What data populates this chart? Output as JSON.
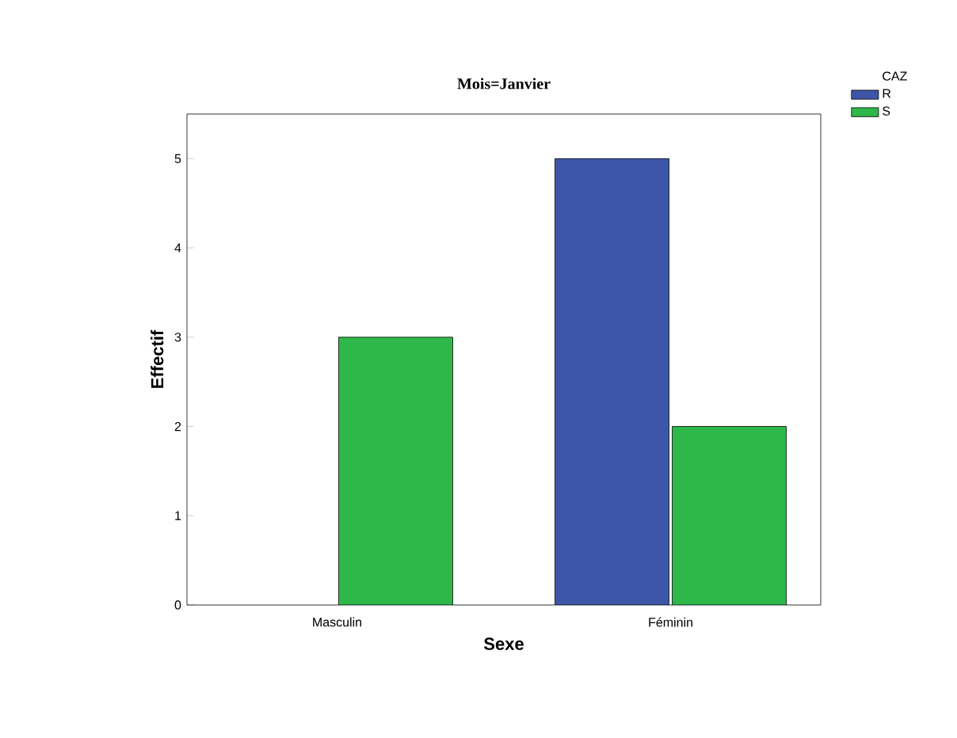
{
  "chart_data": {
    "type": "bar",
    "title": "Mois=Janvier",
    "xlabel": "Sexe",
    "ylabel": "Effectif",
    "legend_title": "CAZ",
    "categories": [
      "Masculin",
      "Féminin"
    ],
    "series": [
      {
        "name": "R",
        "color": "#3e56a8",
        "values": [
          null,
          5
        ]
      },
      {
        "name": "S",
        "color": "#2eb84a",
        "values": [
          3,
          2
        ]
      }
    ],
    "ylim": [
      0,
      5.5
    ],
    "yticks": [
      0,
      1,
      2,
      3,
      4,
      5
    ],
    "grid": false,
    "legend": "top right"
  }
}
